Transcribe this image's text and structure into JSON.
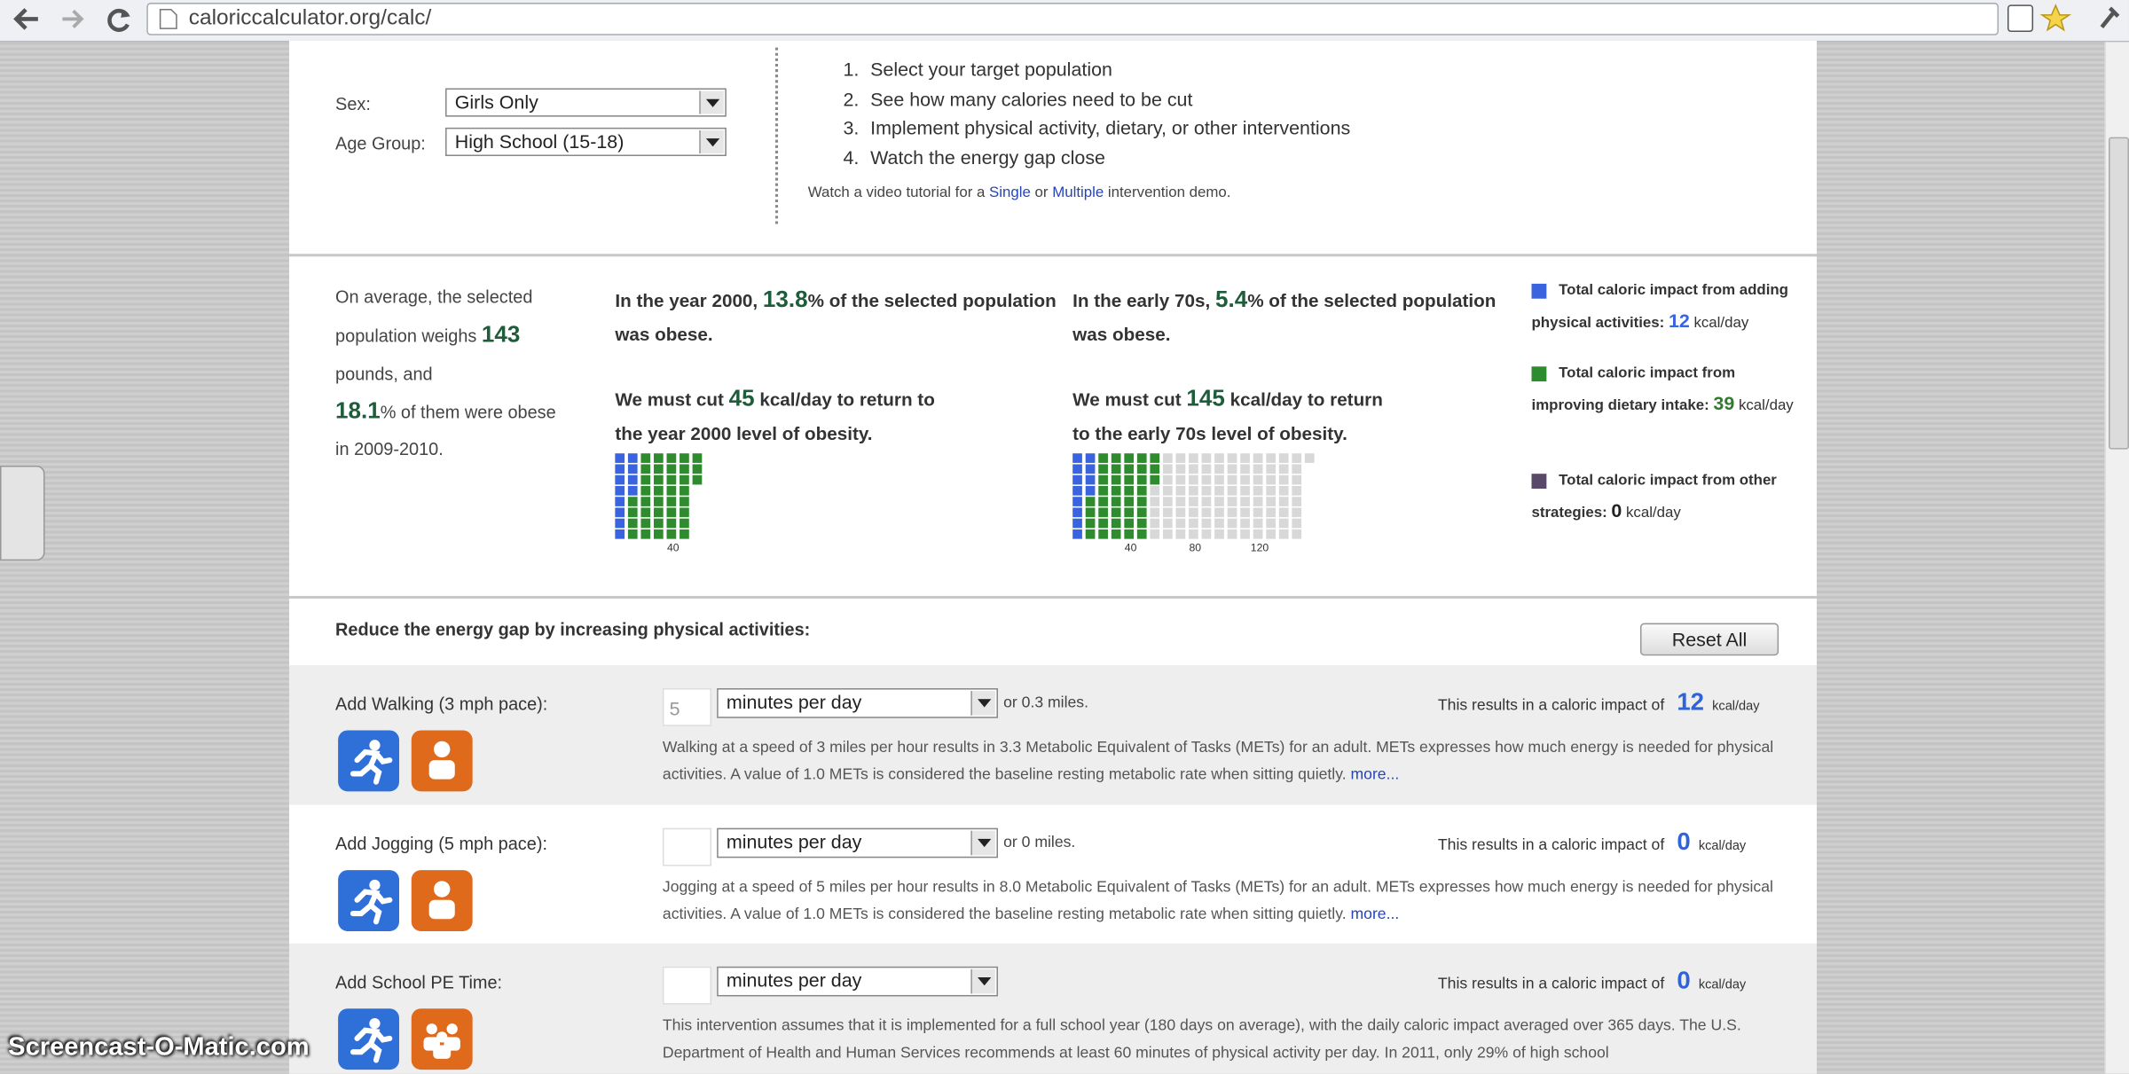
{
  "browser": {
    "url": "caloriccalculator.org/calc/"
  },
  "filters": {
    "sex_label": "Sex:",
    "sex": "Girls Only",
    "age_label": "Age Group:",
    "age": "High School (15-18)"
  },
  "steps": [
    {
      "number": "1.",
      "text": "Select your target population"
    },
    {
      "number": "2.",
      "text": "See how many calories need to be cut"
    },
    {
      "number": "3.",
      "text": "Implement physical activity, dietary, or other interventions"
    },
    {
      "number": "4.",
      "text": "Watch the energy gap close"
    }
  ],
  "tutorial": {
    "prefix": "Watch a video tutorial for a",
    "link1": "Single",
    "middle": "or",
    "link2": "Multiple",
    "suffix": "intervention demo."
  },
  "summary": {
    "prefix": "On average, the selected population weighs",
    "weight": 143,
    "weight_suffix": "pounds, and",
    "obese": 18.1,
    "obese_suffix": "% of them were obese in 2009-2010."
  },
  "targets": [
    {
      "intro": "In the year 2000,",
      "pct": 13.8,
      "pct_suffix": "% of the selected population was obese.",
      "cut_prefix": "We must cut",
      "cut": 45,
      "cut_suffix": "kcal/day to return to the year 2000 level of obesity.",
      "ticks": [
        40
      ]
    },
    {
      "intro": "In the early 70s,",
      "pct": 5.4,
      "pct_suffix": "% of the selected population was obese.",
      "cut_prefix": "We must cut",
      "cut": 145,
      "cut_suffix": "kcal/day to return to the early 70s level of obesity.",
      "ticks": [
        40,
        80,
        120
      ]
    }
  ],
  "impacts": [
    {
      "text": "Total caloric impact from adding physical activities:",
      "value": 12,
      "unit": "kcal/day",
      "color": "#3a63e0",
      "value_color": "#3a63e0"
    },
    {
      "text": "Total caloric impact from improving dietary intake:",
      "value": 39,
      "unit": "kcal/day",
      "color": "#2e8b2e",
      "value_color": "#2e7d2e"
    },
    {
      "text": "Total caloric impact from other strategies:",
      "value": 0,
      "unit": "kcal/day",
      "color": "#5a4a6a",
      "value_color": "#222222"
    }
  ],
  "activities": {
    "title": "Reduce the energy gap by increasing physical activities:",
    "reset": "Reset All",
    "rows": [
      {
        "label": "Add Walking (3 mph pace):",
        "minutes": 5,
        "unit": "minutes per day",
        "miles": "or 0.3 miles.",
        "result_prefix": "This results in a caloric impact of",
        "result": 12,
        "result_unit": "kcal/day",
        "description": "Walking at a speed of 3 miles per hour results in 3.3 Metabolic Equivalent of Tasks (METs) for an adult. METs expresses how much energy is needed for physical activities. A value of 1.0 METs is considered the baseline resting metabolic rate when sitting quietly.",
        "more": "more..."
      },
      {
        "label": "Add Jogging (5 mph pace):",
        "unit": "minutes per day",
        "miles": "or 0 miles.",
        "result_prefix": "This results in a caloric impact of",
        "result": 0,
        "result_unit": "kcal/day",
        "description": "Jogging at a speed of 5 miles per hour results in 8.0 Metabolic Equivalent of Tasks (METs) for an adult. METs expresses how much energy is needed for physical activities. A value of 1.0 METs is considered the baseline resting metabolic rate when sitting quietly.",
        "more": "more..."
      },
      {
        "label": "Add School PE Time:",
        "unit": "minutes per day",
        "result_prefix": "This results in a caloric impact of",
        "result": 0,
        "result_unit": "kcal/day",
        "description": "This intervention assumes that it is implemented for a full school year (180 days on average), with the daily caloric impact averaged over 365 days. The U.S. Department of Health and Human Services recommends at least 60 minutes of physical activity per day. In 2011, only 29% of high school"
      }
    ]
  },
  "watermark": "Screencast-O-Matic.com"
}
